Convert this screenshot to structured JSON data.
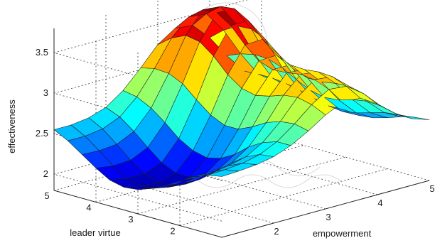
{
  "chart_data": {
    "type": "surface",
    "title": "",
    "xlabel": "empowerment",
    "ylabel": "leader virtue",
    "zlabel": "effectiveness",
    "x_ticks": [
      "2",
      "3",
      "4",
      "5"
    ],
    "y_ticks": [
      "2",
      "3",
      "4",
      "5"
    ],
    "z_ticks": [
      "2",
      "2.5",
      "3",
      "3.5"
    ],
    "xlim": [
      1,
      5
    ],
    "ylim": [
      1,
      5
    ],
    "zlim": [
      1.8,
      3.8
    ],
    "grid": true,
    "colormap": "jet",
    "x": [
      1,
      1.33,
      1.67,
      2,
      2.33,
      2.67,
      3,
      3.33,
      3.67,
      4,
      4.33,
      4.67,
      5
    ],
    "y": [
      1,
      1.33,
      1.67,
      2,
      2.33,
      2.67,
      3,
      3.33,
      3.67,
      4,
      4.33,
      4.67,
      5
    ],
    "z": [
      [
        2.55,
        2.56,
        2.58,
        2.62,
        2.7,
        2.82,
        2.96,
        3.06,
        3.05,
        2.92,
        2.75,
        2.62,
        2.55
      ],
      [
        2.52,
        2.53,
        2.55,
        2.6,
        2.7,
        2.86,
        3.04,
        3.17,
        3.15,
        3.0,
        2.79,
        2.62,
        2.53
      ],
      [
        2.45,
        2.45,
        2.47,
        2.52,
        2.64,
        2.84,
        3.08,
        3.24,
        3.22,
        3.04,
        2.8,
        2.6,
        2.49
      ],
      [
        2.35,
        2.34,
        2.35,
        2.4,
        2.54,
        2.78,
        3.06,
        3.26,
        3.23,
        3.03,
        2.77,
        2.55,
        2.43
      ],
      [
        2.25,
        2.22,
        2.21,
        2.26,
        2.4,
        2.68,
        3.0,
        3.23,
        3.21,
        3.0,
        2.72,
        2.5,
        2.38
      ],
      [
        2.17,
        2.12,
        2.1,
        2.14,
        2.3,
        2.6,
        2.96,
        3.22,
        3.22,
        3.0,
        2.7,
        2.47,
        2.36
      ],
      [
        2.1,
        2.06,
        2.03,
        2.08,
        2.26,
        2.6,
        3.0,
        3.28,
        3.29,
        3.06,
        2.74,
        2.49,
        2.38
      ],
      [
        2.08,
        2.04,
        2.02,
        2.08,
        2.3,
        2.68,
        3.12,
        3.43,
        3.44,
        3.18,
        2.82,
        2.53,
        2.4
      ],
      [
        2.12,
        2.08,
        2.08,
        2.16,
        2.4,
        2.82,
        3.3,
        3.62,
        3.62,
        3.33,
        2.92,
        2.58,
        2.42
      ],
      [
        2.22,
        2.19,
        2.2,
        2.3,
        2.55,
        2.97,
        3.43,
        3.73,
        3.72,
        3.41,
        2.98,
        2.62,
        2.44
      ],
      [
        2.34,
        2.33,
        2.35,
        2.45,
        2.68,
        3.05,
        3.46,
        3.72,
        3.7,
        3.4,
        2.99,
        2.64,
        2.46
      ],
      [
        2.46,
        2.46,
        2.49,
        2.58,
        2.77,
        3.06,
        3.38,
        3.58,
        3.56,
        3.3,
        2.95,
        2.64,
        2.49
      ],
      [
        2.55,
        2.55,
        2.58,
        2.65,
        2.8,
        3.02,
        3.25,
        3.39,
        3.37,
        3.16,
        2.88,
        2.63,
        2.52
      ]
    ]
  }
}
